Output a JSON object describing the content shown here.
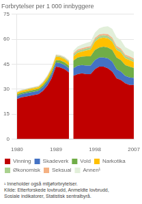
{
  "chart_data": {
    "type": "area",
    "title": "Forbrytelser per 1 000 innbyggere",
    "annotations": [
      "¹ Inneholder også miljøforbrytelser.",
      "Kilde: Etterforskede lovbrudd, Anmeldte lovbrudd,",
      "Sosiale indikatorer, Statistisk sentralbyrå."
    ],
    "stacked": true,
    "grid": true,
    "legend": "bottom",
    "xlim": [
      1980,
      2007
    ],
    "xticks": [
      1980,
      1989,
      1998,
      2007
    ],
    "ylim": [
      0,
      75
    ],
    "yticks": [
      0,
      15,
      30,
      45,
      60,
      75
    ],
    "series": [
      {
        "name": "Vinning",
        "color": "#c00000",
        "x": [
          1980,
          1981,
          1982,
          1983,
          1984,
          1985,
          1986,
          1987,
          1988,
          1989,
          1990,
          1991,
          1992
        ],
        "values": [
          24.0,
          25.0,
          25.5,
          26.0,
          26.5,
          27.0,
          29.0,
          32.0,
          36.5,
          43.5,
          43.0,
          42.0,
          40.0
        ]
      },
      {
        "name": "Skadeverk",
        "color": "#4472c4",
        "x": [
          1980,
          1981,
          1982,
          1983,
          1984,
          1985,
          1986,
          1987,
          1988,
          1989,
          1990,
          1991,
          1992
        ],
        "values": [
          1.8,
          1.9,
          2.0,
          2.0,
          2.0,
          2.1,
          2.2,
          2.3,
          2.4,
          2.5,
          2.6,
          2.5,
          2.5
        ]
      },
      {
        "name": "Vold",
        "color": "#70ad47",
        "x": [
          1980,
          1981,
          1982,
          1983,
          1984,
          1985,
          1986,
          1987,
          1988,
          1989,
          1990,
          1991,
          1992
        ],
        "values": [
          1.0,
          1.0,
          1.0,
          1.1,
          1.1,
          1.1,
          1.2,
          1.3,
          1.4,
          1.5,
          1.6,
          1.6,
          1.5
        ]
      },
      {
        "name": "Narkotika",
        "color": "#ffc000",
        "x": [
          1980,
          1981,
          1982,
          1983,
          1984,
          1985,
          1986,
          1987,
          1988,
          1989,
          1990,
          1991,
          1992
        ],
        "values": [
          1.0,
          1.0,
          1.0,
          1.0,
          1.0,
          1.0,
          1.2,
          1.5,
          1.8,
          2.0,
          2.0,
          2.0,
          2.0
        ]
      },
      {
        "name": "Økonomisk",
        "color": "#a9d18e",
        "x": [
          1980,
          1981,
          1982,
          1983,
          1984,
          1985,
          1986,
          1987,
          1988,
          1989,
          1990,
          1991,
          1992
        ],
        "values": [
          0.3,
          0.3,
          0.3,
          0.3,
          0.4,
          0.4,
          0.4,
          0.5,
          0.5,
          0.6,
          0.6,
          0.6,
          0.6
        ]
      },
      {
        "name": "Seksual",
        "color": "#f4b183",
        "x": [
          1980,
          1981,
          1982,
          1983,
          1984,
          1985,
          1986,
          1987,
          1988,
          1989,
          1990,
          1991,
          1992
        ],
        "values": [
          0.2,
          0.2,
          0.2,
          0.2,
          0.2,
          0.2,
          0.2,
          0.3,
          0.3,
          0.3,
          0.3,
          0.3,
          0.3
        ]
      },
      {
        "name": "Annen¹",
        "color": "#e2efda",
        "x": [
          1980,
          1981,
          1982,
          1983,
          1984,
          1985,
          1986,
          1987,
          1988,
          1989,
          1990,
          1991,
          1992
        ],
        "values": [
          0.3,
          0.3,
          0.3,
          0.3,
          0.3,
          0.4,
          0.4,
          0.5,
          0.5,
          0.6,
          0.6,
          0.6,
          0.6
        ]
      },
      {
        "name": "Vinning",
        "color": "#c00000",
        "x": [
          1993,
          1994,
          1995,
          1996,
          1997,
          1998,
          1999,
          2000,
          2001,
          2002,
          2003,
          2004,
          2005,
          2006,
          2007
        ],
        "values": [
          38.0,
          39.0,
          39.5,
          39.0,
          39.0,
          42.0,
          43.5,
          43.5,
          42.5,
          40.5,
          36.5,
          35.5,
          33.5,
          32.5,
          32.5
        ]
      },
      {
        "name": "Skadeverk",
        "color": "#4472c4",
        "x": [
          1993,
          1994,
          1995,
          1996,
          1997,
          1998,
          1999,
          2000,
          2001,
          2002,
          2003,
          2004,
          2005,
          2006,
          2007
        ],
        "values": [
          4.5,
          5.0,
          5.0,
          5.2,
          5.2,
          5.5,
          5.5,
          5.5,
          6.0,
          6.0,
          5.5,
          5.0,
          4.5,
          4.5,
          4.2
        ]
      },
      {
        "name": "Vold",
        "color": "#70ad47",
        "x": [
          1993,
          1994,
          1995,
          1996,
          1997,
          1998,
          1999,
          2000,
          2001,
          2002,
          2003,
          2004,
          2005,
          2006,
          2007
        ],
        "values": [
          4.5,
          5.0,
          5.0,
          5.5,
          5.5,
          6.0,
          6.0,
          6.5,
          6.5,
          7.0,
          7.0,
          7.0,
          6.5,
          6.5,
          6.0
        ]
      },
      {
        "name": "Narkotika",
        "color": "#ffc000",
        "x": [
          1993,
          1994,
          1995,
          1996,
          1997,
          1998,
          1999,
          2000,
          2001,
          2002,
          2003,
          2004,
          2005,
          2006,
          2007
        ],
        "values": [
          2.5,
          2.8,
          3.0,
          3.5,
          4.0,
          5.0,
          5.5,
          5.5,
          5.5,
          5.0,
          4.5,
          4.5,
          4.0,
          4.0,
          3.5
        ]
      },
      {
        "name": "Økonomisk",
        "color": "#a9d18e",
        "x": [
          1993,
          1994,
          1995,
          1996,
          1997,
          1998,
          1999,
          2000,
          2001,
          2002,
          2003,
          2004,
          2005,
          2006,
          2007
        ],
        "values": [
          1.2,
          1.2,
          1.3,
          1.3,
          1.3,
          1.4,
          1.4,
          1.4,
          1.5,
          1.5,
          1.5,
          1.4,
          1.4,
          1.3,
          1.3
        ]
      },
      {
        "name": "Seksual",
        "color": "#f4b183",
        "x": [
          1993,
          1994,
          1995,
          1996,
          1997,
          1998,
          1999,
          2000,
          2001,
          2002,
          2003,
          2004,
          2005,
          2006,
          2007
        ],
        "values": [
          0.8,
          0.8,
          0.8,
          0.8,
          0.8,
          0.9,
          0.9,
          0.9,
          1.0,
          1.0,
          1.0,
          1.0,
          0.9,
          0.9,
          0.9
        ]
      },
      {
        "name": "Annen¹",
        "color": "#e2efda",
        "x": [
          1993,
          1994,
          1995,
          1996,
          1997,
          1998,
          1999,
          2000,
          2001,
          2002,
          2003,
          2004,
          2005,
          2006,
          2007
        ],
        "values": [
          1.5,
          1.8,
          2.2,
          2.5,
          2.8,
          3.2,
          3.8,
          4.2,
          4.8,
          5.2,
          5.2,
          5.0,
          4.5,
          4.2,
          4.0
        ]
      }
    ]
  }
}
